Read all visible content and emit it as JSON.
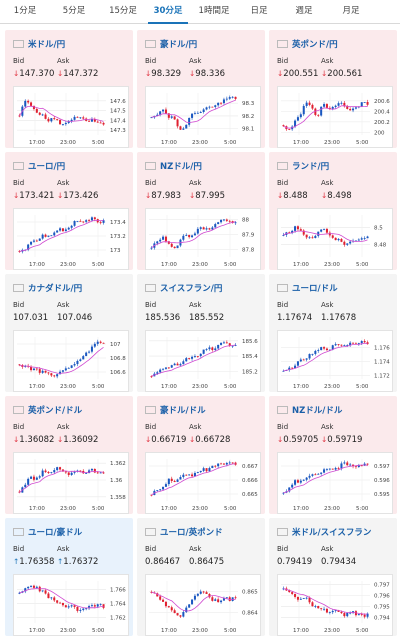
{
  "tabs": [
    {
      "label": "1分足",
      "active": false
    },
    {
      "label": "5分足",
      "active": false
    },
    {
      "label": "15分足",
      "active": false
    },
    {
      "label": "30分足",
      "active": true
    },
    {
      "label": "1時間足",
      "active": false
    },
    {
      "label": "日足",
      "active": false
    },
    {
      "label": "週足",
      "active": false
    },
    {
      "label": "月足",
      "active": false
    }
  ],
  "labels": {
    "bid": "Bid",
    "ask": "Ask"
  },
  "colors": {
    "up_candle": "#1a57c0",
    "down_candle": "#e02030",
    "ma_line": "#d04ad0",
    "down_bg": "#fbeaec",
    "up_bg": "#e8f2fc",
    "neutral_bg": "#f4f4f4"
  },
  "pairs": [
    {
      "name": "米ドル/円",
      "flag": "flag-us",
      "bid": "147.370",
      "ask": "147.372",
      "change": "down",
      "chart_data": {
        "type": "candlestick",
        "yticks": [
          "147.6",
          "147.5",
          "147.4",
          "147.3"
        ],
        "xticks": [
          "17:00",
          "23:00",
          "5:00"
        ],
        "ylim": [
          147.25,
          147.68
        ],
        "trend": [
          147.45,
          147.6,
          147.55,
          147.5,
          147.45,
          147.4,
          147.42,
          147.38,
          147.35,
          147.4,
          147.45,
          147.42,
          147.38,
          147.4,
          147.36,
          147.37
        ]
      }
    },
    {
      "name": "豪ドル/円",
      "flag": "flag-au",
      "bid": "98.329",
      "ask": "98.336",
      "change": "down",
      "chart_data": {
        "type": "candlestick",
        "yticks": [
          "98.3",
          "98.2",
          "98.1"
        ],
        "xticks": [
          "17:00",
          "23:00",
          "5:00"
        ],
        "ylim": [
          98.05,
          98.38
        ],
        "trend": [
          98.2,
          98.22,
          98.25,
          98.2,
          98.18,
          98.1,
          98.12,
          98.2,
          98.22,
          98.25,
          98.28,
          98.26,
          98.3,
          98.33,
          98.35,
          98.33
        ]
      }
    },
    {
      "name": "英ポンド/円",
      "flag": "flag-gb",
      "bid": "200.551",
      "ask": "200.561",
      "change": "down",
      "chart_data": {
        "type": "candlestick",
        "yticks": [
          "200.6",
          "200.4",
          "200.2",
          "200"
        ],
        "xticks": [
          "17:00",
          "23:00",
          "5:00"
        ],
        "ylim": [
          199.95,
          200.75
        ],
        "trend": [
          200.1,
          200.05,
          200.2,
          200.35,
          200.6,
          200.45,
          200.3,
          200.55,
          200.4,
          200.5,
          200.6,
          200.45,
          200.4,
          200.5,
          200.55,
          200.55
        ]
      }
    },
    {
      "name": "ユーロ/円",
      "flag": "flag-eu",
      "bid": "173.421",
      "ask": "173.426",
      "change": "down",
      "chart_data": {
        "type": "candlestick",
        "yticks": [
          "173.4",
          "173.2",
          "173"
        ],
        "xticks": [
          "17:00",
          "23:00",
          "5:00"
        ],
        "ylim": [
          172.9,
          173.5
        ],
        "trend": [
          172.98,
          173.02,
          173.1,
          173.15,
          173.2,
          173.18,
          173.22,
          173.3,
          173.28,
          173.35,
          173.4,
          173.38,
          173.42,
          173.45,
          173.4,
          173.42
        ]
      }
    },
    {
      "name": "NZドル/円",
      "flag": "flag-nz",
      "bid": "87.983",
      "ask": "87.995",
      "change": "down",
      "chart_data": {
        "type": "candlestick",
        "yticks": [
          "88",
          "87.9",
          "87.8"
        ],
        "xticks": [
          "17:00",
          "23:00",
          "5:00"
        ],
        "ylim": [
          87.75,
          88.03
        ],
        "trend": [
          87.82,
          87.85,
          87.88,
          87.83,
          87.8,
          87.85,
          87.9,
          87.88,
          87.92,
          87.95,
          87.93,
          87.96,
          87.98,
          88.0,
          87.98,
          87.99
        ]
      }
    },
    {
      "name": "ランド/円",
      "flag": "flag-za",
      "bid": "8.488",
      "ask": "8.498",
      "change": "down",
      "chart_data": {
        "type": "candlestick",
        "yticks": [
          "8.5",
          "8.48"
        ],
        "xticks": [
          "17:00",
          "23:00",
          "5:00"
        ],
        "ylim": [
          8.465,
          8.515
        ],
        "trend": [
          8.49,
          8.495,
          8.5,
          8.495,
          8.49,
          8.485,
          8.495,
          8.5,
          8.492,
          8.488,
          8.485,
          8.48,
          8.483,
          8.486,
          8.488,
          8.489
        ]
      }
    },
    {
      "name": "カナダドル/円",
      "flag": "flag-ca",
      "bid": "107.031",
      "ask": "107.046",
      "change": "neutral",
      "chart_data": {
        "type": "candlestick",
        "yticks": [
          "107",
          "106.8",
          "106.6"
        ],
        "xticks": [
          "17:00",
          "23:00",
          "5:00"
        ],
        "ylim": [
          106.5,
          107.1
        ],
        "trend": [
          106.7,
          106.68,
          106.65,
          106.62,
          106.6,
          106.58,
          106.55,
          106.6,
          106.62,
          106.65,
          106.72,
          106.8,
          106.88,
          106.95,
          107.02,
          107.03
        ]
      }
    },
    {
      "name": "スイスフラン/円",
      "flag": "flag-ch",
      "bid": "185.536",
      "ask": "185.552",
      "change": "neutral",
      "chart_data": {
        "type": "candlestick",
        "yticks": [
          "185.6",
          "185.4",
          "185.2"
        ],
        "xticks": [
          "17:00",
          "23:00",
          "5:00"
        ],
        "ylim": [
          185.1,
          185.65
        ],
        "trend": [
          185.15,
          185.2,
          185.25,
          185.22,
          185.3,
          185.28,
          185.35,
          185.4,
          185.38,
          185.45,
          185.5,
          185.48,
          185.55,
          185.58,
          185.54,
          185.54
        ]
      }
    },
    {
      "name": "ユーロ/ドル",
      "flag": "flag-eu",
      "bid": "1.17674",
      "ask": "1.17678",
      "change": "neutral",
      "chart_data": {
        "type": "candlestick",
        "yticks": [
          "1.176",
          "1.174",
          "1.172"
        ],
        "xticks": [
          "17:00",
          "23:00",
          "5:00"
        ],
        "ylim": [
          1.1715,
          1.1775
        ],
        "trend": [
          1.1725,
          1.173,
          1.1735,
          1.174,
          1.1745,
          1.175,
          1.1755,
          1.176,
          1.1758,
          1.1762,
          1.1765,
          1.1763,
          1.1767,
          1.1766,
          1.1768,
          1.1767
        ]
      }
    },
    {
      "name": "英ポンド/ドル",
      "flag": "flag-gb",
      "bid": "1.36082",
      "ask": "1.36092",
      "change": "down",
      "chart_data": {
        "type": "candlestick",
        "yticks": [
          "1.362",
          "1.36",
          "1.358"
        ],
        "xticks": [
          "17:00",
          "23:00",
          "5:00"
        ],
        "ylim": [
          1.3575,
          1.3625
        ],
        "trend": [
          1.3585,
          1.3595,
          1.3605,
          1.36,
          1.361,
          1.3608,
          1.3612,
          1.3615,
          1.361,
          1.3605,
          1.3612,
          1.361,
          1.3608,
          1.3612,
          1.3609,
          1.3608
        ]
      }
    },
    {
      "name": "豪ドル/ドル",
      "flag": "flag-au",
      "bid": "0.66719",
      "ask": "0.66728",
      "change": "down",
      "chart_data": {
        "type": "candlestick",
        "yticks": [
          "0.667",
          "0.666",
          "0.665"
        ],
        "xticks": [
          "17:00",
          "23:00",
          "5:00"
        ],
        "ylim": [
          0.6645,
          0.6675
        ],
        "trend": [
          0.665,
          0.6652,
          0.6655,
          0.666,
          0.6658,
          0.6662,
          0.6665,
          0.6663,
          0.6666,
          0.6668,
          0.6667,
          0.667,
          0.6672,
          0.6671,
          0.6672,
          0.6672
        ]
      }
    },
    {
      "name": "NZドル/ドル",
      "flag": "flag-nz",
      "bid": "0.59705",
      "ask": "0.59719",
      "change": "down",
      "chart_data": {
        "type": "candlestick",
        "yticks": [
          "0.597",
          "0.596",
          "0.595"
        ],
        "xticks": [
          "17:00",
          "23:00",
          "5:00"
        ],
        "ylim": [
          0.5945,
          0.5975
        ],
        "trend": [
          0.595,
          0.5955,
          0.596,
          0.5958,
          0.5962,
          0.5965,
          0.5963,
          0.5966,
          0.5968,
          0.5967,
          0.597,
          0.5972,
          0.5971,
          0.597,
          0.5971,
          0.5971
        ]
      }
    },
    {
      "name": "ユーロ/豪ドル",
      "flag": "flag-eu",
      "bid": "1.76358",
      "ask": "1.76372",
      "change": "up",
      "chart_data": {
        "type": "candlestick",
        "yticks": [
          "1.766",
          "1.764",
          "1.762"
        ],
        "xticks": [
          "17:00",
          "23:00",
          "5:00"
        ],
        "ylim": [
          1.7612,
          1.7672
        ],
        "trend": [
          1.7655,
          1.766,
          1.7665,
          1.7662,
          1.7658,
          1.765,
          1.7645,
          1.764,
          1.7635,
          1.7638,
          1.7632,
          1.7628,
          1.7634,
          1.7636,
          1.7638,
          1.7636
        ]
      }
    },
    {
      "name": "ユーロ/英ポンド",
      "flag": "flag-eu",
      "bid": "0.86467",
      "ask": "0.86475",
      "change": "neutral",
      "chart_data": {
        "type": "candlestick",
        "yticks": [
          "0.865",
          "0.864"
        ],
        "xticks": [
          "17:00",
          "23:00",
          "5:00"
        ],
        "ylim": [
          0.8635,
          0.8655
        ],
        "trend": [
          0.865,
          0.8648,
          0.8645,
          0.8642,
          0.864,
          0.8638,
          0.8642,
          0.8645,
          0.8648,
          0.865,
          0.8648,
          0.8646,
          0.8645,
          0.8647,
          0.8646,
          0.8647
        ]
      }
    },
    {
      "name": "米ドル/スイスフラン",
      "flag": "flag-us",
      "bid": "0.79419",
      "ask": "0.79434",
      "change": "neutral",
      "chart_data": {
        "type": "candlestick",
        "yticks": [
          "0.797",
          "0.796",
          "0.795",
          "0.794"
        ],
        "xticks": [
          "17:00",
          "23:00",
          "5:00"
        ],
        "ylim": [
          0.7935,
          0.7973
        ],
        "trend": [
          0.7965,
          0.7962,
          0.7958,
          0.7955,
          0.796,
          0.7952,
          0.795,
          0.7948,
          0.7945,
          0.7947,
          0.7944,
          0.7942,
          0.7945,
          0.7943,
          0.7942,
          0.7942
        ]
      }
    }
  ]
}
